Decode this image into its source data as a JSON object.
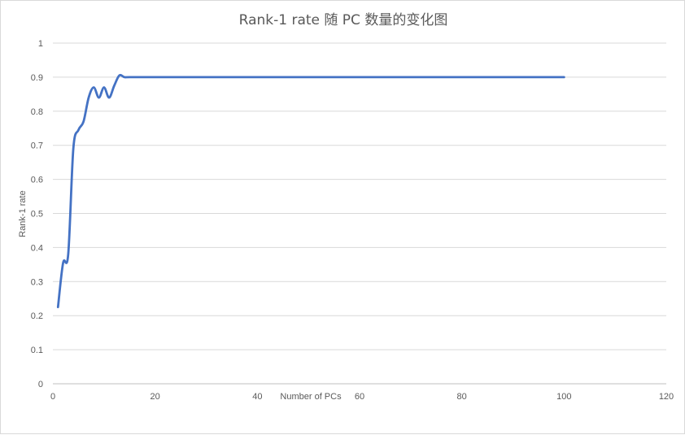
{
  "chart_data": {
    "type": "line",
    "title": "Rank-1 rate 随 PC 数量的变化图",
    "xlabel": "Number  of PCs",
    "ylabel": "Rank-1 rate",
    "xlim": [
      0,
      120
    ],
    "ylim": [
      0,
      1
    ],
    "x_ticks": [
      0,
      20,
      40,
      60,
      80,
      100,
      120
    ],
    "y_ticks": [
      "0",
      "0.1",
      "0.2",
      "0.3",
      "0.4",
      "0.5",
      "0.6",
      "0.7",
      "0.8",
      "0.9",
      "1"
    ],
    "grid": "horizontal",
    "legend": "none",
    "series": [
      {
        "color": "#4472c4",
        "x": [
          1,
          2,
          3,
          4,
          5,
          6,
          7,
          8,
          9,
          10,
          11,
          12,
          13,
          14,
          15,
          20,
          30,
          40,
          50,
          60,
          70,
          80,
          90,
          100
        ],
        "y": [
          0.225,
          0.355,
          0.38,
          0.69,
          0.745,
          0.77,
          0.84,
          0.87,
          0.84,
          0.87,
          0.84,
          0.875,
          0.905,
          0.9,
          0.9,
          0.9,
          0.9,
          0.9,
          0.9,
          0.9,
          0.9,
          0.9,
          0.9,
          0.9
        ]
      }
    ]
  }
}
